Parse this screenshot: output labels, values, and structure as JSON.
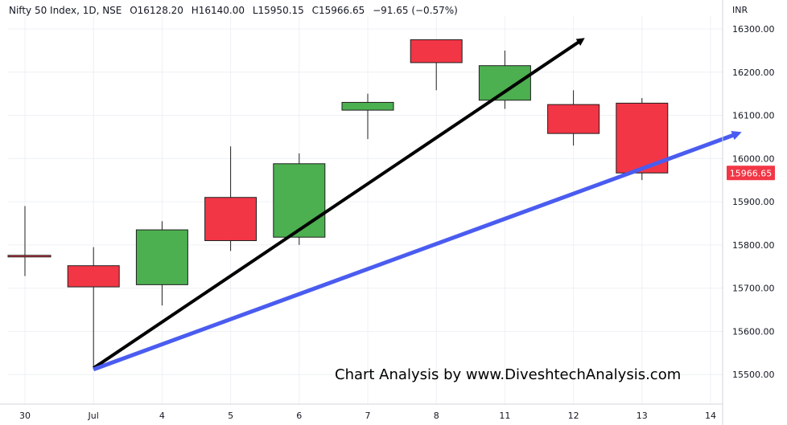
{
  "header": {
    "symbol": "Nifty 50 Index, 1D, NSE",
    "open": "O16128.20",
    "high": "H16140.00",
    "low": "L15950.15",
    "close": "C15966.65",
    "change": "−91.65 (−0.57%)"
  },
  "price_scale": {
    "currency": "INR",
    "last_price_label": "15966.65"
  },
  "watermark": "Chart Analysis by www.DiveshtechAnalysis.com",
  "colors": {
    "up": "#4caf50",
    "down": "#f23645",
    "grid": "#eef0f4",
    "black_trend": "#000000",
    "blue_trend": "#4a5cf0",
    "last_price_bg": "#f23645"
  },
  "chart_data": {
    "type": "candlestick",
    "ylim": [
      15440,
      16340
    ],
    "y_ticks": [
      15500,
      15600,
      15700,
      15800,
      15900,
      16000,
      16100,
      16200,
      16300
    ],
    "y_tick_labels": [
      "15500.00",
      "15600.00",
      "15700.00",
      "15800.00",
      "15900.00",
      "16000.00",
      "16100.00",
      "16200.00",
      "16300.00"
    ],
    "x_tick_labels": [
      "30",
      "Jul",
      "4",
      "5",
      "6",
      "7",
      "8",
      "11",
      "12",
      "13",
      "14"
    ],
    "candles": [
      {
        "date": "30",
        "open": 15776,
        "high": 15890,
        "low": 15728,
        "close": 15773
      },
      {
        "date": "Jul",
        "open": 15752,
        "high": 15795,
        "low": 15512,
        "close": 15703
      },
      {
        "date": "4",
        "open": 15708,
        "high": 15855,
        "low": 15660,
        "close": 15835
      },
      {
        "date": "5",
        "open": 15910,
        "high": 16028,
        "low": 15786,
        "close": 15810
      },
      {
        "date": "6",
        "open": 15818,
        "high": 16012,
        "low": 15800,
        "close": 15988
      },
      {
        "date": "7",
        "open": 16112,
        "high": 16150,
        "low": 16045,
        "close": 16130
      },
      {
        "date": "8",
        "open": 16275,
        "high": 16275,
        "low": 16158,
        "close": 16222
      },
      {
        "date": "11",
        "open": 16135,
        "high": 16250,
        "low": 16115,
        "close": 16215
      },
      {
        "date": "12",
        "open": 16125,
        "high": 16158,
        "low": 16030,
        "close": 16058
      },
      {
        "date": "13",
        "open": 16128.2,
        "high": 16140,
        "low": 15950.15,
        "close": 15966.65
      }
    ],
    "trendlines": [
      {
        "color": "black",
        "from": {
          "date": "Jul",
          "price": 15515
        },
        "to": {
          "date": "11",
          "price": 16275
        }
      },
      {
        "color": "blue",
        "from": {
          "date": "Jul",
          "price": 15512
        },
        "to": {
          "date": "14",
          "price": 16058
        }
      }
    ],
    "last_price": 15966.65
  }
}
